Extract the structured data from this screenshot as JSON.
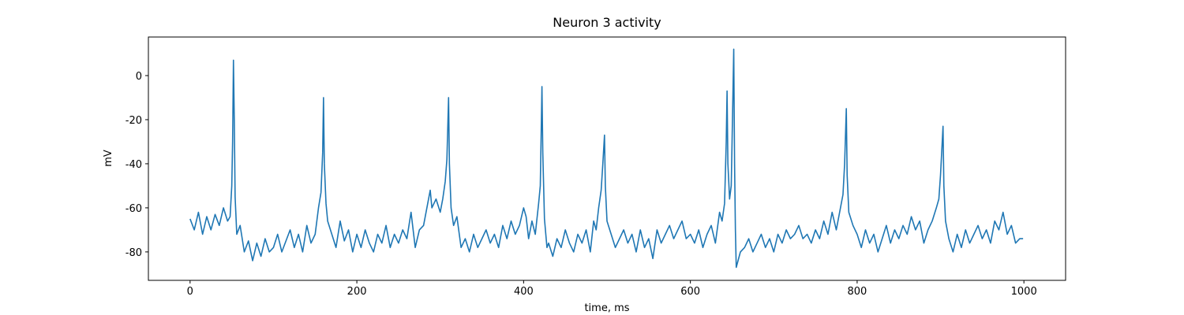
{
  "chart_data": {
    "type": "line",
    "title": "Neuron 3 activity",
    "x_label": "time, ms",
    "y_label": "mV",
    "xlim": [
      -50,
      1050
    ],
    "ylim": [
      -92.9,
      17.5
    ],
    "xticks": [
      0,
      200,
      400,
      600,
      800,
      1000
    ],
    "yticks": [
      -80,
      -60,
      -40,
      -20,
      0
    ],
    "grid": false,
    "series": [
      {
        "name": "mV",
        "color": "#1f77b4",
        "x": [
          0,
          5,
          10,
          15,
          20,
          25,
          30,
          35,
          40,
          45,
          48,
          50,
          51,
          52,
          53,
          54,
          56,
          60,
          65,
          70,
          75,
          80,
          85,
          90,
          95,
          100,
          105,
          110,
          115,
          120,
          125,
          130,
          135,
          140,
          145,
          150,
          154,
          157,
          159,
          160,
          161,
          163,
          165,
          170,
          175,
          180,
          185,
          190,
          195,
          200,
          205,
          210,
          215,
          220,
          225,
          230,
          235,
          240,
          245,
          250,
          255,
          260,
          265,
          270,
          275,
          280,
          285,
          288,
          290,
          295,
          300,
          303,
          306,
          308,
          310,
          311,
          313,
          316,
          320,
          325,
          330,
          335,
          340,
          345,
          350,
          355,
          360,
          365,
          370,
          375,
          380,
          385,
          390,
          395,
          400,
          403,
          406,
          410,
          414,
          418,
          420,
          422,
          423,
          425,
          428,
          430,
          435,
          440,
          445,
          450,
          455,
          460,
          465,
          470,
          475,
          480,
          484,
          487,
          490,
          493,
          495,
          497,
          498,
          500,
          505,
          510,
          515,
          520,
          525,
          530,
          535,
          540,
          545,
          550,
          555,
          560,
          565,
          570,
          575,
          580,
          585,
          590,
          595,
          600,
          605,
          610,
          615,
          620,
          625,
          630,
          635,
          638,
          641,
          643,
          644,
          645,
          647,
          649,
          650,
          652,
          653,
          654,
          655,
          660,
          665,
          670,
          675,
          680,
          685,
          690,
          695,
          700,
          705,
          710,
          715,
          720,
          725,
          730,
          735,
          740,
          745,
          750,
          755,
          760,
          765,
          770,
          775,
          780,
          783,
          785,
          787,
          788,
          790,
          795,
          800,
          805,
          810,
          815,
          820,
          825,
          830,
          835,
          840,
          845,
          850,
          855,
          860,
          865,
          870,
          875,
          880,
          885,
          890,
          895,
          898,
          900,
          903,
          904,
          906,
          910,
          915,
          920,
          925,
          930,
          935,
          940,
          945,
          950,
          955,
          960,
          965,
          970,
          975,
          980,
          985,
          990,
          995,
          999
        ],
        "values": [
          -65,
          -70,
          -62,
          -72,
          -64,
          -70,
          -63,
          -68,
          -60,
          -66,
          -64,
          -50,
          -30,
          7,
          -20,
          -55,
          -72,
          -68,
          -80,
          -75,
          -84,
          -76,
          -82,
          -74,
          -80,
          -78,
          -72,
          -80,
          -75,
          -70,
          -78,
          -72,
          -80,
          -68,
          -76,
          -72,
          -60,
          -53,
          -35,
          -10,
          -40,
          -58,
          -66,
          -72,
          -78,
          -66,
          -75,
          -70,
          -80,
          -72,
          -78,
          -70,
          -76,
          -80,
          -72,
          -76,
          -68,
          -78,
          -72,
          -76,
          -70,
          -74,
          -62,
          -78,
          -70,
          -68,
          -58,
          -52,
          -60,
          -56,
          -62,
          -56,
          -48,
          -38,
          -10,
          -40,
          -60,
          -68,
          -64,
          -78,
          -74,
          -80,
          -72,
          -78,
          -74,
          -70,
          -76,
          -72,
          -78,
          -68,
          -74,
          -66,
          -72,
          -68,
          -60,
          -64,
          -74,
          -66,
          -72,
          -58,
          -50,
          -5,
          -35,
          -65,
          -78,
          -76,
          -82,
          -74,
          -78,
          -70,
          -76,
          -80,
          -72,
          -76,
          -70,
          -80,
          -66,
          -70,
          -60,
          -52,
          -40,
          -27,
          -50,
          -66,
          -72,
          -78,
          -74,
          -70,
          -76,
          -72,
          -80,
          -70,
          -78,
          -74,
          -83,
          -70,
          -76,
          -72,
          -68,
          -74,
          -70,
          -66,
          -74,
          -72,
          -76,
          -70,
          -78,
          -72,
          -68,
          -76,
          -62,
          -66,
          -58,
          -30,
          -7,
          -40,
          -56,
          -50,
          -30,
          12,
          -40,
          -70,
          -87,
          -80,
          -78,
          -74,
          -80,
          -76,
          -72,
          -78,
          -74,
          -80,
          -72,
          -76,
          -70,
          -74,
          -72,
          -68,
          -74,
          -72,
          -76,
          -70,
          -74,
          -66,
          -72,
          -62,
          -70,
          -60,
          -54,
          -40,
          -15,
          -45,
          -62,
          -68,
          -72,
          -78,
          -70,
          -76,
          -72,
          -80,
          -74,
          -68,
          -76,
          -70,
          -74,
          -68,
          -72,
          -64,
          -70,
          -66,
          -76,
          -70,
          -66,
          -60,
          -56,
          -45,
          -23,
          -50,
          -66,
          -74,
          -80,
          -72,
          -78,
          -70,
          -76,
          -72,
          -68,
          -74,
          -70,
          -76,
          -66,
          -70,
          -62,
          -72,
          -68,
          -76,
          -74,
          -74
        ]
      }
    ]
  }
}
